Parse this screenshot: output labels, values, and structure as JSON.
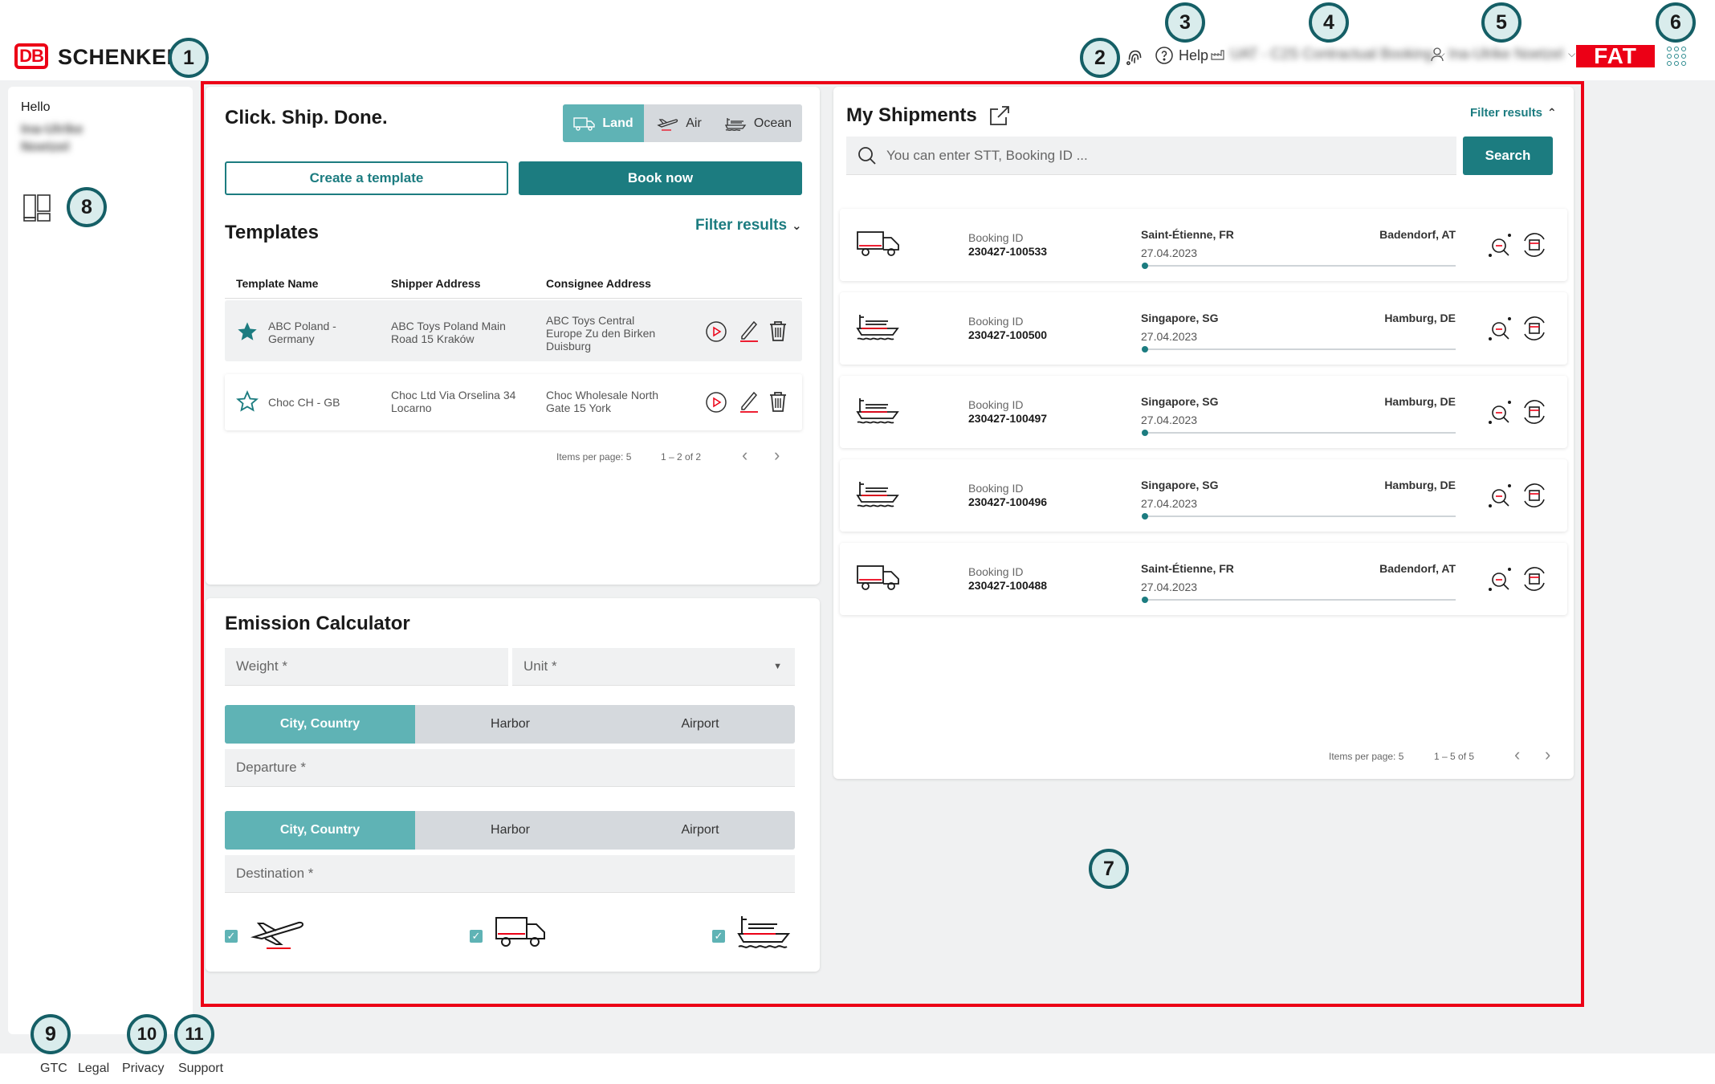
{
  "header": {
    "brand_db": "DB",
    "brand_name": "SCHENKER",
    "help_label": "Help",
    "environment": "UAT - C2S Contractual Booking",
    "user_name": "Ina-Ulrike Noetzel",
    "fat_label": "FAT"
  },
  "badges": [
    "1",
    "2",
    "3",
    "4",
    "5",
    "6",
    "7",
    "8",
    "9",
    "10",
    "11"
  ],
  "sidebar": {
    "greeting": "Hello",
    "user_name": "Ina-Ulrike Noetzel"
  },
  "booking": {
    "title": "Click. Ship. Done.",
    "modes": [
      {
        "label": "Land",
        "icon": "truck-icon",
        "active": true
      },
      {
        "label": "Air",
        "icon": "plane-icon",
        "active": false
      },
      {
        "label": "Ocean",
        "icon": "ship-icon",
        "active": false
      }
    ],
    "create_template_label": "Create a template",
    "book_now_label": "Book now"
  },
  "templates": {
    "title": "Templates",
    "filter_label": "Filter results",
    "columns": [
      "Template Name",
      "Shipper Address",
      "Consignee Address"
    ],
    "rows": [
      {
        "favorite": true,
        "name": "ABC Poland - Germany",
        "shipper": "ABC Toys Poland Main Road 15 Kraków",
        "consignee": "ABC Toys Central Europe Zu den Birken Duisburg"
      },
      {
        "favorite": false,
        "name": "Choc CH - GB",
        "shipper": "Choc Ltd Via Orselina 34 Locarno",
        "consignee": "Choc Wholesale North Gate 15 York"
      }
    ],
    "items_per_page": "Items per page: 5",
    "range": "1 – 2 of 2"
  },
  "emission": {
    "title": "Emission Calculator",
    "weight_placeholder": "Weight *",
    "unit_placeholder": "Unit *",
    "location_types": [
      "City, Country",
      "Harbor",
      "Airport"
    ],
    "departure_placeholder": "Departure *",
    "destination_placeholder": "Destination *",
    "transport_icons": [
      "plane-icon",
      "truck-icon",
      "ship-icon"
    ]
  },
  "shipments": {
    "title": "My Shipments",
    "filter_label": "Filter results",
    "search_placeholder": "You can enter STT, Booking ID ...",
    "search_label": "Search",
    "booking_id_label": "Booking ID",
    "items": [
      {
        "mode": "truck-icon",
        "id": "230427-100533",
        "origin": "Saint-Étienne, FR",
        "destination": "Badendorf, AT",
        "date": "27.04.2023"
      },
      {
        "mode": "ship-icon",
        "id": "230427-100500",
        "origin": "Singapore, SG",
        "destination": "Hamburg, DE",
        "date": "27.04.2023"
      },
      {
        "mode": "ship-icon",
        "id": "230427-100497",
        "origin": "Singapore, SG",
        "destination": "Hamburg, DE",
        "date": "27.04.2023"
      },
      {
        "mode": "ship-icon",
        "id": "230427-100496",
        "origin": "Singapore, SG",
        "destination": "Hamburg, DE",
        "date": "27.04.2023"
      },
      {
        "mode": "truck-icon",
        "id": "230427-100488",
        "origin": "Saint-Étienne, FR",
        "destination": "Badendorf, AT",
        "date": "27.04.2023"
      }
    ],
    "items_per_page": "Items per page: 5",
    "range": "1 – 5 of 5"
  },
  "footer": {
    "links": [
      "GTC",
      "Legal",
      "Privacy",
      "Support"
    ]
  },
  "colors": {
    "brand_red": "#ec0016",
    "teal": "#1c7c80",
    "teal_light": "#5fb3b5"
  }
}
